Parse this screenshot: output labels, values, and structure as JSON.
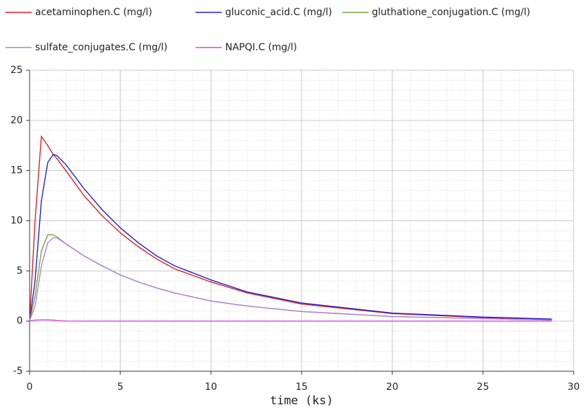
{
  "chart_data": {
    "type": "line",
    "x_label": "time (ks)",
    "x": [
      0,
      0.3,
      0.65,
      1,
      1.3,
      1.5,
      2,
      3,
      4,
      5,
      6,
      7,
      8,
      10,
      12,
      15,
      20,
      25,
      28.8
    ],
    "series": [
      {
        "name": "acetaminophen.C (mg/l)",
        "color": "#e31a1c",
        "values": [
          0,
          10,
          18.4,
          17.5,
          16.6,
          16.2,
          15,
          12.5,
          10.5,
          8.8,
          7.4,
          6.2,
          5.2,
          3.9,
          2.8,
          1.7,
          0.75,
          0.35,
          0.15
        ]
      },
      {
        "name": "gluconic_acid.C (mg/l)",
        "color": "#1f1fd0",
        "values": [
          0,
          4,
          12,
          15.8,
          16.6,
          16.5,
          15.6,
          13.2,
          11.1,
          9.3,
          7.8,
          6.5,
          5.5,
          4.1,
          2.9,
          1.8,
          0.8,
          0.4,
          0.2
        ]
      },
      {
        "name": "gluthatione_conjugation.C (mg/l)",
        "color": "#6fac2e",
        "values": [
          0,
          2.5,
          7,
          8.6,
          8.6,
          8.4,
          7.7,
          6.5,
          5.5,
          4.6,
          3.9,
          3.3,
          2.8,
          2.0,
          1.5,
          0.95,
          0.45,
          0.25,
          0.1
        ]
      },
      {
        "name": "sulfate_conjugates.C (mg/l)",
        "color": "#b07ee0",
        "values": [
          0,
          1.5,
          5.5,
          7.8,
          8.3,
          8.3,
          7.7,
          6.5,
          5.5,
          4.6,
          3.9,
          3.3,
          2.8,
          2.0,
          1.5,
          0.95,
          0.45,
          0.25,
          0.1
        ]
      },
      {
        "name": "NAPQI.C (mg/l)",
        "color": "#e040e0",
        "values": [
          0,
          0.1,
          0.12,
          0.12,
          0.1,
          0.05,
          0.01,
          0,
          0,
          0,
          0,
          0,
          0,
          0,
          0,
          0,
          0,
          0,
          0
        ]
      }
    ],
    "xlim": [
      0,
      30
    ],
    "xticks": [
      0,
      5,
      10,
      15,
      20,
      25,
      30
    ],
    "ylim": [
      -5,
      25
    ],
    "yticks": [
      -5,
      0,
      5,
      10,
      15,
      20,
      25
    ],
    "grid": true
  }
}
